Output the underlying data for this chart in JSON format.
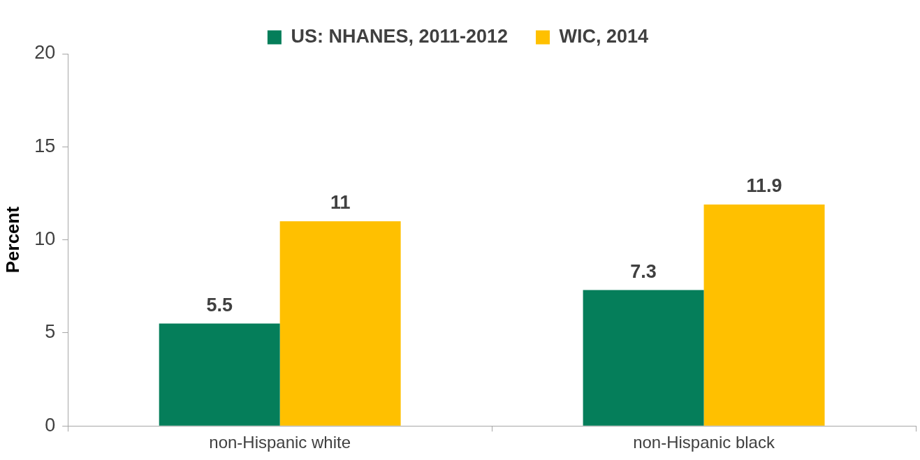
{
  "chart_data": {
    "type": "bar",
    "ylabel": "Percent",
    "categories": [
      "non-Hispanic white",
      "non-Hispanic black"
    ],
    "series": [
      {
        "name": "US: NHANES, 2011-2012",
        "color": "#057e5a",
        "values": [
          5.5,
          7.3
        ]
      },
      {
        "name": "WIC, 2014",
        "color": "#ffc000",
        "values": [
          11,
          11.9
        ]
      }
    ],
    "ylim": [
      0,
      20
    ],
    "yticks": [
      0,
      5,
      10,
      15,
      20
    ],
    "grid": false,
    "legend": "top",
    "data_labels": true
  }
}
